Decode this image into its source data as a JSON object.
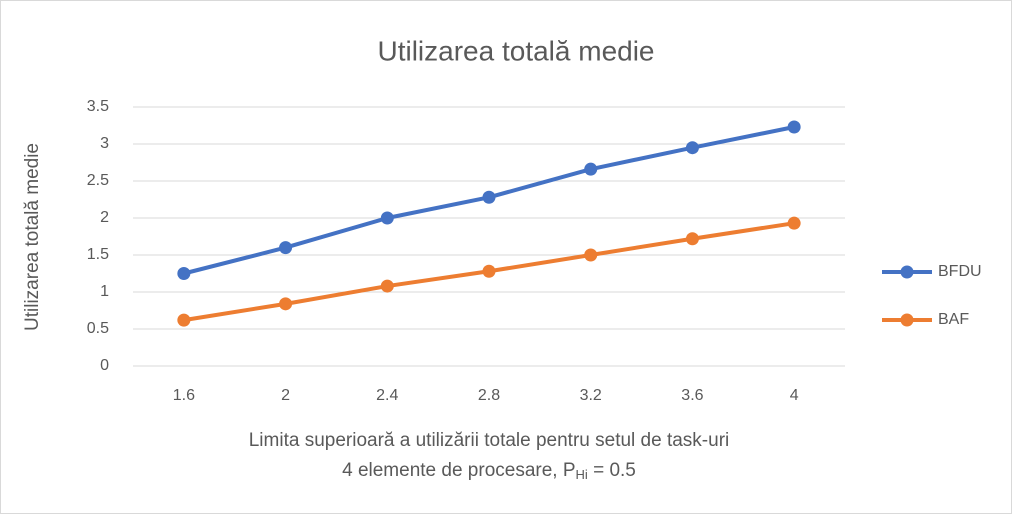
{
  "chart_data": {
    "type": "line",
    "title": "Utilizarea totală medie",
    "y_label": "Utilizarea totală medie",
    "x_label": "Limita superioară a utilizării totale pentru setul de task-uri",
    "x_label_2": {
      "text": "4 elemente de procesare, P",
      "subscript": "Hi",
      "rest": " = 0.5"
    },
    "categories": [
      "1.6",
      "2",
      "2.4",
      "2.8",
      "3.2",
      "3.6",
      "4"
    ],
    "series": [
      {
        "name": "BFDU",
        "color": "#4472c4",
        "values": [
          1.25,
          1.6,
          2.0,
          2.28,
          2.66,
          2.95,
          3.23
        ]
      },
      {
        "name": "BAF",
        "color": "#ed7d31",
        "values": [
          0.62,
          0.84,
          1.08,
          1.28,
          1.5,
          1.72,
          1.93
        ]
      }
    ],
    "ylim": [
      0,
      3.5
    ],
    "yticks": [
      0,
      0.5,
      1,
      1.5,
      2,
      2.5,
      3,
      3.5
    ],
    "grid": true,
    "legend": "right"
  }
}
